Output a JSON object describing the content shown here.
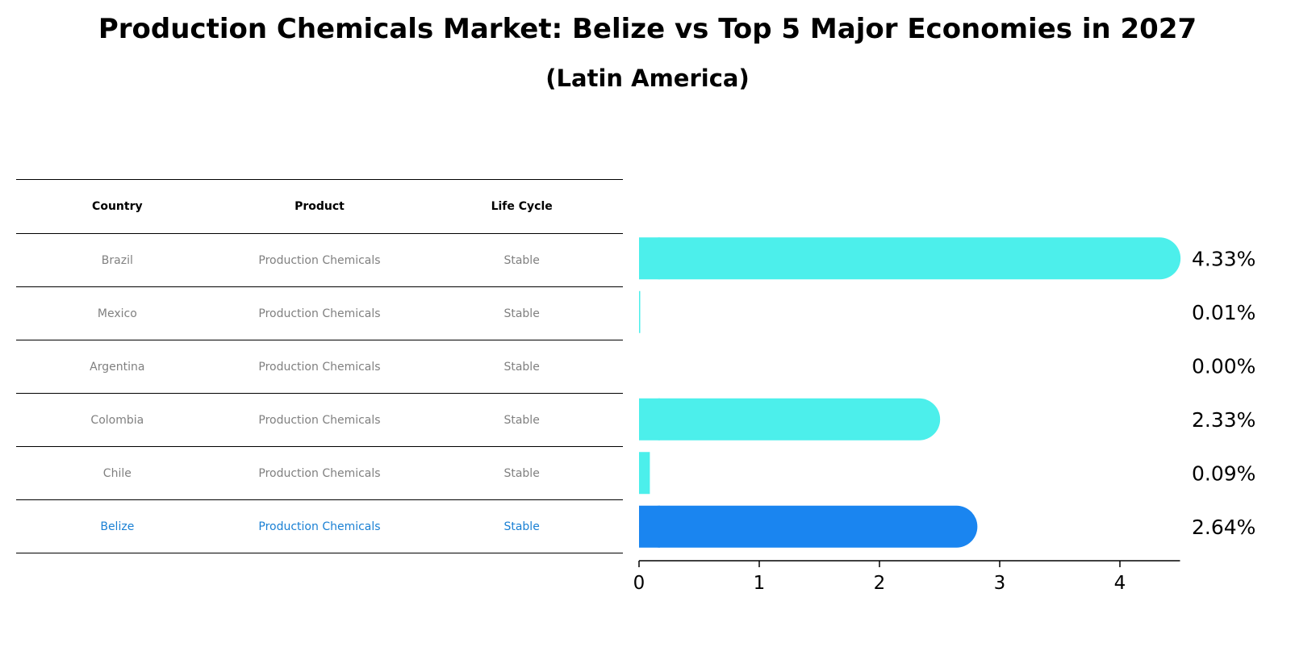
{
  "title": "Production Chemicals Market: Belize vs Top 5 Major Economies in 2027",
  "subtitle": "(Latin America)",
  "table": {
    "headers": [
      "Country",
      "Product",
      "Life Cycle"
    ],
    "rows": [
      [
        "Brazil",
        "Production Chemicals",
        "Stable"
      ],
      [
        "Mexico",
        "Production Chemicals",
        "Stable"
      ],
      [
        "Argentina",
        "Production Chemicals",
        "Stable"
      ],
      [
        "Colombia",
        "Production Chemicals",
        "Stable"
      ],
      [
        "Chile",
        "Production Chemicals",
        "Stable"
      ],
      [
        "Belize",
        "Production Chemicals",
        "Stable"
      ]
    ],
    "highlight_row": 5
  },
  "chart_data": {
    "type": "bar",
    "orientation": "horizontal",
    "categories": [
      "Brazil",
      "Mexico",
      "Argentina",
      "Colombia",
      "Chile",
      "Belize"
    ],
    "values": [
      4.33,
      0.01,
      0.0,
      2.33,
      0.09,
      2.64
    ],
    "value_labels": [
      "4.33%",
      "0.01%",
      "0.00%",
      "2.33%",
      "0.09%",
      "2.64%"
    ],
    "xlim": [
      0,
      4.5
    ],
    "xticks": [
      0,
      1,
      2,
      3,
      4
    ],
    "colors": {
      "default": "#4cefeb",
      "highlight": "#1a85f0"
    },
    "highlight_index": 5,
    "grid": false
  }
}
